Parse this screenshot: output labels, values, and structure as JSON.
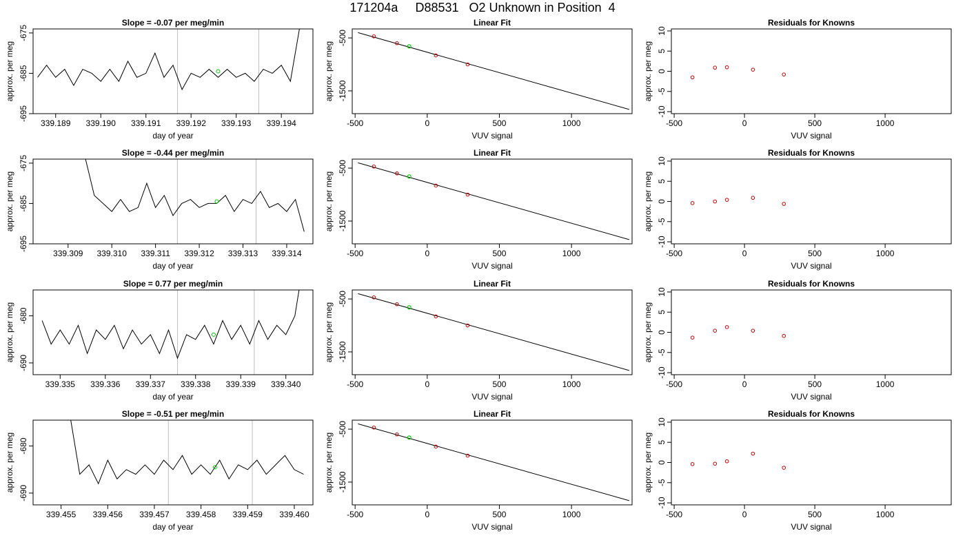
{
  "page_title": "171204a     D88531   O2 Unknown in Position  4",
  "style": {
    "trace_color": "#000000",
    "vline_color": "#bebebe",
    "known_color": "#cc0000",
    "unknown_color": "#00cc00",
    "fit_line_color": "#000000"
  },
  "chart_data": [
    {
      "type": "line",
      "title": "Slope =  -0.07  per meg/min",
      "xlabel": "day of year",
      "ylabel": "approx. per meg",
      "xlim": [
        339.1885,
        339.1947
      ],
      "ylim": [
        -695,
        -674
      ],
      "xticks": [
        "339.189",
        "339.190",
        "339.191",
        "339.192",
        "339.193",
        "339.194"
      ],
      "yticks": [
        "-675",
        "-685",
        "-695"
      ],
      "ytick_values": [
        -675,
        -685,
        -695
      ],
      "vlines": [
        339.1917,
        339.1935
      ],
      "x": [
        339.1886,
        339.1888,
        339.189,
        339.1892,
        339.1894,
        339.1896,
        339.1898,
        339.19,
        339.1902,
        339.1904,
        339.1906,
        339.1908,
        339.191,
        339.1912,
        339.1914,
        339.1916,
        339.1918,
        339.192,
        339.1922,
        339.1924,
        339.1926,
        339.1928,
        339.193,
        339.1932,
        339.1934,
        339.1936,
        339.1938,
        339.194,
        339.1942,
        339.1944
      ],
      "y": [
        -686,
        -683,
        -686,
        -684,
        -688,
        -684,
        -685,
        -687,
        -684,
        -687,
        -682,
        -686,
        -685,
        -680,
        -686,
        -683,
        -689,
        -685,
        -686,
        -684,
        -686,
        -684,
        -686,
        -685,
        -687,
        -684,
        -685,
        -683,
        -687,
        -674
      ],
      "marker": {
        "x": 339.1926,
        "y": -684.5
      }
    },
    {
      "type": "scatter",
      "title": "Linear Fit",
      "xlabel": "VUV signal",
      "ylabel": "approx. per meg",
      "xlim": [
        -520,
        1420
      ],
      "ylim": [
        -1930,
        -330
      ],
      "xticks": [
        "-500",
        "0",
        "500",
        "1000"
      ],
      "xtick_values": [
        -500,
        0,
        500,
        1000
      ],
      "yticks": [
        "-500",
        "-1500"
      ],
      "ytick_values": [
        -500,
        -1500
      ],
      "fit_line": [
        [
          -480,
          -400
        ],
        [
          1400,
          -1850
        ]
      ],
      "knowns": [
        [
          -370,
          -470
        ],
        [
          -210,
          -600
        ],
        [
          60,
          -830
        ],
        [
          280,
          -1000
        ]
      ],
      "unknown": [
        -125,
        -660
      ]
    },
    {
      "type": "scatter",
      "title": "Residuals for Knowns",
      "xlabel": "VUV signal",
      "ylabel": "approx. per meg",
      "xlim": [
        -520,
        1470
      ],
      "ylim": [
        -10.5,
        10.5
      ],
      "xticks": [
        "-500",
        "0",
        "500",
        "1000"
      ],
      "xtick_values": [
        -500,
        0,
        500,
        1000
      ],
      "yticks": [
        "10",
        "5",
        "0",
        "-5",
        "-10"
      ],
      "ytick_values": [
        10,
        5,
        0,
        -5,
        -10
      ],
      "points": [
        [
          -370,
          -1.5
        ],
        [
          -210,
          0.9
        ],
        [
          -125,
          1.0
        ],
        [
          60,
          0.4
        ],
        [
          280,
          -0.8
        ]
      ]
    },
    {
      "type": "line",
      "title": "Slope =  -0.44  per meg/min",
      "xlabel": "day of year",
      "ylabel": "approx. per meg",
      "xlim": [
        339.3082,
        339.3146
      ],
      "ylim": [
        -695,
        -674
      ],
      "xticks": [
        "339.309",
        "339.310",
        "339.311",
        "339.312",
        "339.313",
        "339.314"
      ],
      "yticks": [
        "-675",
        "-685",
        "-695"
      ],
      "ytick_values": [
        -675,
        -685,
        -695
      ],
      "vlines": [
        339.3115,
        339.3133
      ],
      "x": [
        339.3094,
        339.3096,
        339.3098,
        339.31,
        339.3102,
        339.3104,
        339.3106,
        339.3108,
        339.311,
        339.3112,
        339.3114,
        339.3116,
        339.3118,
        339.312,
        339.3122,
        339.3124,
        339.3126,
        339.3128,
        339.313,
        339.3132,
        339.3134,
        339.3136,
        339.3138,
        339.314,
        339.3142,
        339.3144
      ],
      "y": [
        -674,
        -683,
        -685,
        -687,
        -684,
        -687,
        -686,
        -680,
        -686,
        -683,
        -688,
        -685,
        -684,
        -686,
        -685,
        -685,
        -683,
        -687,
        -684,
        -685,
        -682,
        -686,
        -685,
        -687,
        -684,
        -692
      ],
      "marker": {
        "x": 339.3124,
        "y": -684.5
      }
    },
    {
      "type": "scatter",
      "title": "Linear Fit",
      "xlabel": "VUV signal",
      "ylabel": "approx. per meg",
      "xlim": [
        -520,
        1420
      ],
      "ylim": [
        -1930,
        -330
      ],
      "xticks": [
        "-500",
        "0",
        "500",
        "1000"
      ],
      "xtick_values": [
        -500,
        0,
        500,
        1000
      ],
      "yticks": [
        "-500",
        "-1500"
      ],
      "ytick_values": [
        -500,
        -1500
      ],
      "fit_line": [
        [
          -480,
          -400
        ],
        [
          1400,
          -1850
        ]
      ],
      "knowns": [
        [
          -370,
          -470
        ],
        [
          -210,
          -600
        ],
        [
          60,
          -830
        ],
        [
          280,
          -1000
        ]
      ],
      "unknown": [
        -125,
        -660
      ]
    },
    {
      "type": "scatter",
      "title": "Residuals for Knowns",
      "xlabel": "VUV signal",
      "ylabel": "approx. per meg",
      "xlim": [
        -520,
        1470
      ],
      "ylim": [
        -10.5,
        10.5
      ],
      "xticks": [
        "-500",
        "0",
        "500",
        "1000"
      ],
      "xtick_values": [
        -500,
        0,
        500,
        1000
      ],
      "yticks": [
        "10",
        "5",
        "0",
        "-5",
        "-10"
      ],
      "ytick_values": [
        10,
        5,
        0,
        -5,
        -10
      ],
      "points": [
        [
          -370,
          -0.4
        ],
        [
          -210,
          0.0
        ],
        [
          -125,
          0.4
        ],
        [
          60,
          0.9
        ],
        [
          280,
          -0.6
        ]
      ]
    },
    {
      "type": "line",
      "title": "Slope =  0.77  per meg/min",
      "xlabel": "day of year",
      "ylabel": "approx. per meg",
      "xlim": [
        339.3344,
        339.3406
      ],
      "ylim": [
        -692.5,
        -674.5
      ],
      "xticks": [
        "339.335",
        "339.336",
        "339.337",
        "339.338",
        "339.339",
        "339.340"
      ],
      "yticks": [
        "-680",
        "-690"
      ],
      "ytick_values": [
        -680,
        -690
      ],
      "vlines": [
        339.3376,
        339.3393
      ],
      "x": [
        339.3346,
        339.3348,
        339.335,
        339.3352,
        339.3354,
        339.3356,
        339.3358,
        339.336,
        339.3362,
        339.3364,
        339.3366,
        339.3368,
        339.337,
        339.3372,
        339.3374,
        339.3376,
        339.3378,
        339.338,
        339.3382,
        339.3384,
        339.3386,
        339.3388,
        339.339,
        339.3392,
        339.3394,
        339.3396,
        339.3398,
        339.34,
        339.3402,
        339.3403
      ],
      "y": [
        -681,
        -686,
        -683,
        -686,
        -682,
        -688,
        -683,
        -685,
        -682,
        -687,
        -683,
        -686,
        -684,
        -688,
        -683,
        -689,
        -684,
        -685,
        -682,
        -686,
        -681,
        -685,
        -682,
        -686,
        -681,
        -685,
        -682,
        -684,
        -680,
        -674
      ],
      "marker": {
        "x": 339.3384,
        "y": -684
      }
    },
    {
      "type": "scatter",
      "title": "Linear Fit",
      "xlabel": "VUV signal",
      "ylabel": "approx. per meg",
      "xlim": [
        -520,
        1420
      ],
      "ylim": [
        -1930,
        -330
      ],
      "xticks": [
        "-500",
        "0",
        "500",
        "1000"
      ],
      "xtick_values": [
        -500,
        0,
        500,
        1000
      ],
      "yticks": [
        "-500",
        "-1500"
      ],
      "ytick_values": [
        -500,
        -1500
      ],
      "fit_line": [
        [
          -480,
          -400
        ],
        [
          1400,
          -1850
        ]
      ],
      "knowns": [
        [
          -370,
          -470
        ],
        [
          -210,
          -600
        ],
        [
          60,
          -830
        ],
        [
          280,
          -1000
        ]
      ],
      "unknown": [
        -125,
        -660
      ]
    },
    {
      "type": "scatter",
      "title": "Residuals for Knowns",
      "xlabel": "VUV signal",
      "ylabel": "approx. per meg",
      "xlim": [
        -520,
        1470
      ],
      "ylim": [
        -10.5,
        10.5
      ],
      "xticks": [
        "-500",
        "0",
        "500",
        "1000"
      ],
      "xtick_values": [
        -500,
        0,
        500,
        1000
      ],
      "yticks": [
        "10",
        "5",
        "0",
        "-5",
        "-10"
      ],
      "ytick_values": [
        10,
        5,
        0,
        -5,
        -10
      ],
      "points": [
        [
          -370,
          -1.3
        ],
        [
          -210,
          0.4
        ],
        [
          -125,
          1.3
        ],
        [
          60,
          0.4
        ],
        [
          280,
          -0.9
        ]
      ]
    },
    {
      "type": "line",
      "title": "Slope =  -0.51  per meg/min",
      "xlabel": "day of year",
      "ylabel": "approx. per meg",
      "xlim": [
        339.4544,
        339.4604
      ],
      "ylim": [
        -692.5,
        -674.5
      ],
      "xticks": [
        "339.455",
        "339.456",
        "339.457",
        "339.458",
        "339.459",
        "339.460"
      ],
      "yticks": [
        "-680",
        "-690"
      ],
      "ytick_values": [
        -680,
        -690
      ],
      "vlines": [
        339.4573,
        339.4591
      ],
      "x": [
        339.4552,
        339.4554,
        339.4556,
        339.4558,
        339.456,
        339.4562,
        339.4564,
        339.4566,
        339.4568,
        339.457,
        339.4572,
        339.4574,
        339.4576,
        339.4578,
        339.458,
        339.4582,
        339.4584,
        339.4586,
        339.4588,
        339.459,
        339.4592,
        339.4594,
        339.4596,
        339.4598,
        339.46,
        339.4602
      ],
      "y": [
        -674,
        -686,
        -684,
        -688,
        -683,
        -687,
        -685,
        -686,
        -684,
        -686,
        -683,
        -685,
        -682,
        -686,
        -684,
        -686,
        -683,
        -687,
        -684,
        -685,
        -683,
        -686,
        -684,
        -682,
        -685,
        -686
      ],
      "marker": {
        "x": 339.4583,
        "y": -684.5
      }
    },
    {
      "type": "scatter",
      "title": "Linear Fit",
      "xlabel": "VUV signal",
      "ylabel": "approx. per meg",
      "xlim": [
        -520,
        1420
      ],
      "ylim": [
        -1930,
        -330
      ],
      "xticks": [
        "-500",
        "0",
        "500",
        "1000"
      ],
      "xtick_values": [
        -500,
        0,
        500,
        1000
      ],
      "yticks": [
        "-500",
        "-1500"
      ],
      "ytick_values": [
        -500,
        -1500
      ],
      "fit_line": [
        [
          -480,
          -400
        ],
        [
          1400,
          -1850
        ]
      ],
      "knowns": [
        [
          -370,
          -470
        ],
        [
          -210,
          -600
        ],
        [
          60,
          -830
        ],
        [
          280,
          -1000
        ]
      ],
      "unknown": [
        -125,
        -660
      ]
    },
    {
      "type": "scatter",
      "title": "Residuals for Knowns",
      "xlabel": "VUV signal",
      "ylabel": "approx. per meg",
      "xlim": [
        -520,
        1470
      ],
      "ylim": [
        -10.5,
        10.5
      ],
      "xticks": [
        "-500",
        "0",
        "500",
        "1000"
      ],
      "xtick_values": [
        -500,
        0,
        500,
        1000
      ],
      "yticks": [
        "10",
        "5",
        "0",
        "-5",
        "-10"
      ],
      "ytick_values": [
        10,
        5,
        0,
        -5,
        -10
      ],
      "points": [
        [
          -370,
          -0.4
        ],
        [
          -210,
          -0.3
        ],
        [
          -125,
          0.3
        ],
        [
          60,
          2.2
        ],
        [
          280,
          -1.3
        ]
      ]
    }
  ]
}
